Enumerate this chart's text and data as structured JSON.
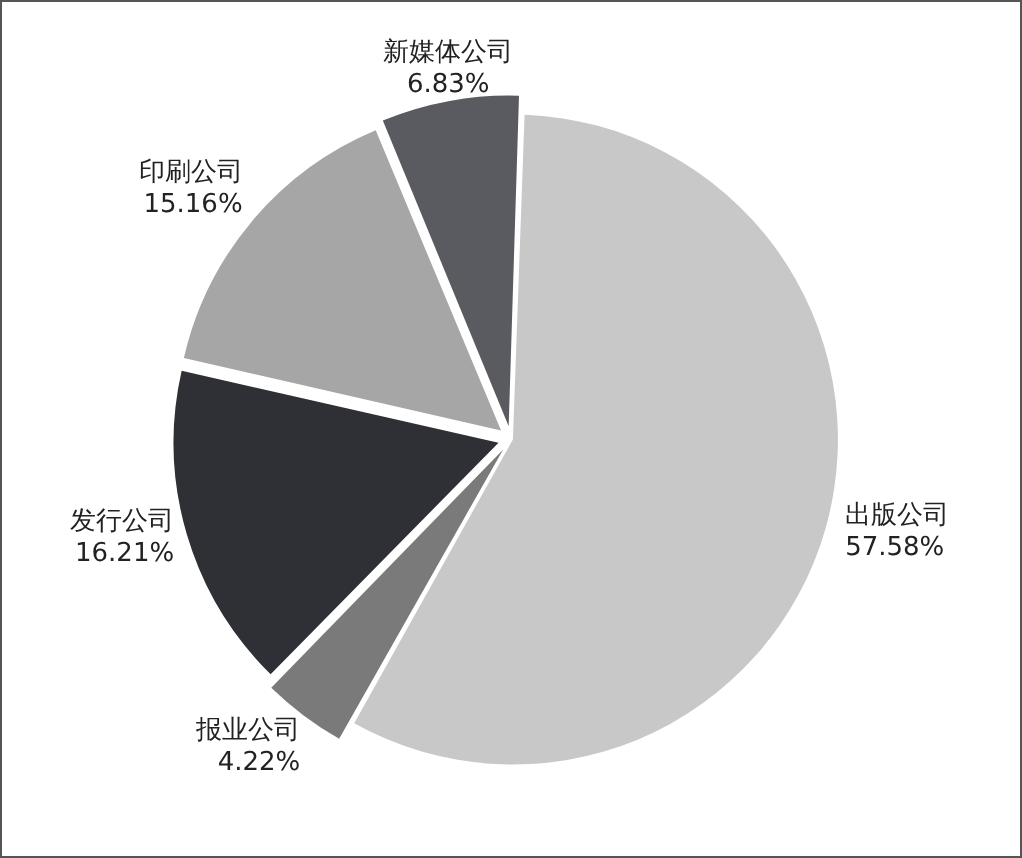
{
  "chart_data": {
    "type": "pie",
    "categories": [
      "出版公司",
      "报业公司",
      "发行公司",
      "印刷公司",
      "新媒体公司"
    ],
    "values": [
      57.58,
      4.22,
      16.21,
      15.16,
      6.83
    ],
    "value_labels": [
      "57.58%",
      "4.22%",
      "16.21%",
      "15.16%",
      "6.83%"
    ],
    "colors": [
      "#c8c8c8",
      "#7a7a7a",
      "#2e3035",
      "#a6a6a6",
      "#5a5b60"
    ]
  }
}
